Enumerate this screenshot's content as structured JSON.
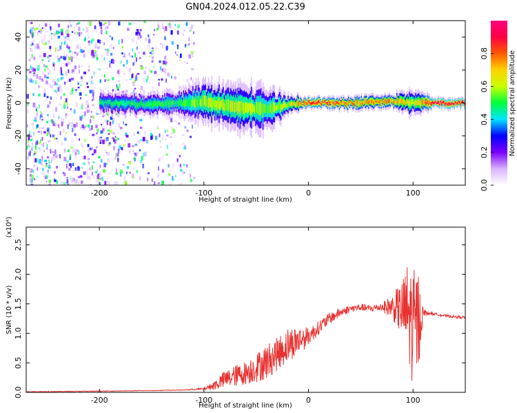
{
  "title": "GN04.2024.012.05.22.C39",
  "chart_data": [
    {
      "type": "heatmap",
      "xlabel": "Height of straight line (km)",
      "ylabel": "Frequency (Hz)",
      "xlim": [
        -270,
        150
      ],
      "ylim": [
        -50,
        50
      ],
      "xticks": [
        -200,
        -100,
        0,
        100
      ],
      "yticks": [
        -40,
        -20,
        0,
        20,
        40
      ],
      "xtick_labels": [
        "-200",
        "-100",
        "0",
        "100"
      ],
      "ytick_labels": [
        "-40",
        "-20",
        "0",
        "20",
        "40"
      ],
      "colorbar": {
        "label": "Normalized spectral amplitude",
        "range": [
          0,
          1
        ],
        "ticks": [
          0,
          0.2,
          0.4,
          0.6,
          0.8
        ],
        "tick_labels": [
          "0.0",
          "0.2",
          "0.4",
          "0.6",
          "0.8"
        ],
        "colors": [
          "#ffffff",
          "#d9b3ff",
          "#7a00ff",
          "#0000ff",
          "#00e5ff",
          "#00ff3a",
          "#c8ff00",
          "#ffd200",
          "#ff5a00",
          "#ff0040",
          "#ff0080"
        ]
      },
      "band": [
        {
          "x": -200,
          "center": 0,
          "half_width": 3,
          "level": 0.45
        },
        {
          "x": -150,
          "center": -1,
          "half_width": 3,
          "level": 0.5
        },
        {
          "x": -120,
          "center": 0,
          "half_width": 4,
          "level": 0.5
        },
        {
          "x": -100,
          "center": 1,
          "half_width": 6,
          "level": 0.6
        },
        {
          "x": -80,
          "center": -2,
          "half_width": 6,
          "level": 0.6
        },
        {
          "x": -60,
          "center": -3,
          "half_width": 7,
          "level": 0.6
        },
        {
          "x": -40,
          "center": -4,
          "half_width": 6,
          "level": 0.55
        },
        {
          "x": -20,
          "center": -1,
          "half_width": 3,
          "level": 0.6
        },
        {
          "x": 0,
          "center": 0,
          "half_width": 1.5,
          "level": 0.85
        },
        {
          "x": 40,
          "center": 0,
          "half_width": 2,
          "level": 0.75
        },
        {
          "x": 80,
          "center": 1,
          "half_width": 2,
          "level": 0.75
        },
        {
          "x": 100,
          "center": 0,
          "half_width": 4,
          "level": 0.6
        },
        {
          "x": 120,
          "center": 0,
          "half_width": 1.5,
          "level": 0.9
        },
        {
          "x": 150,
          "center": 0,
          "half_width": 1.5,
          "level": 0.9
        }
      ],
      "noise_region_x": [
        -270,
        -110
      ]
    },
    {
      "type": "line",
      "xlabel": "Height of straight line (km)",
      "ylabel": "SNR (10 * v/v)",
      "y_multiplier": "(x10⁴)",
      "xlim": [
        -270,
        150
      ],
      "ylim": [
        0,
        2.8
      ],
      "xticks": [
        -200,
        -100,
        0,
        100
      ],
      "yticks": [
        0,
        0.5,
        1.0,
        1.5,
        2.0,
        2.5
      ],
      "xtick_labels": [
        "-200",
        "-100",
        "0",
        "100"
      ],
      "ytick_labels": [
        "0.0",
        "0.5",
        "1.0",
        "1.5",
        "2.0",
        "2.5"
      ],
      "color": "#e8312f",
      "x": [
        -270,
        -200,
        -150,
        -120,
        -100,
        -90,
        -80,
        -70,
        -60,
        -50,
        -40,
        -30,
        -20,
        -10,
        0,
        10,
        20,
        30,
        40,
        50,
        60,
        70,
        80,
        90,
        95,
        100,
        105,
        110,
        120,
        130,
        140,
        150
      ],
      "y": [
        0.01,
        0.02,
        0.03,
        0.04,
        0.06,
        0.12,
        0.22,
        0.28,
        0.33,
        0.42,
        0.52,
        0.65,
        0.8,
        0.88,
        0.95,
        1.1,
        1.25,
        1.35,
        1.42,
        1.44,
        1.42,
        1.45,
        1.45,
        1.4,
        1.35,
        1.1,
        1.2,
        1.35,
        1.33,
        1.3,
        1.28,
        1.27
      ],
      "noise": [
        0,
        0,
        0,
        0,
        0.02,
        0.08,
        0.15,
        0.18,
        0.2,
        0.25,
        0.3,
        0.28,
        0.3,
        0.25,
        0.15,
        0.12,
        0.1,
        0.08,
        0.06,
        0.06,
        0.06,
        0.08,
        0.2,
        0.5,
        0.9,
        1.0,
        0.9,
        0.05,
        0.02,
        0.02,
        0.02,
        0.02
      ]
    }
  ]
}
